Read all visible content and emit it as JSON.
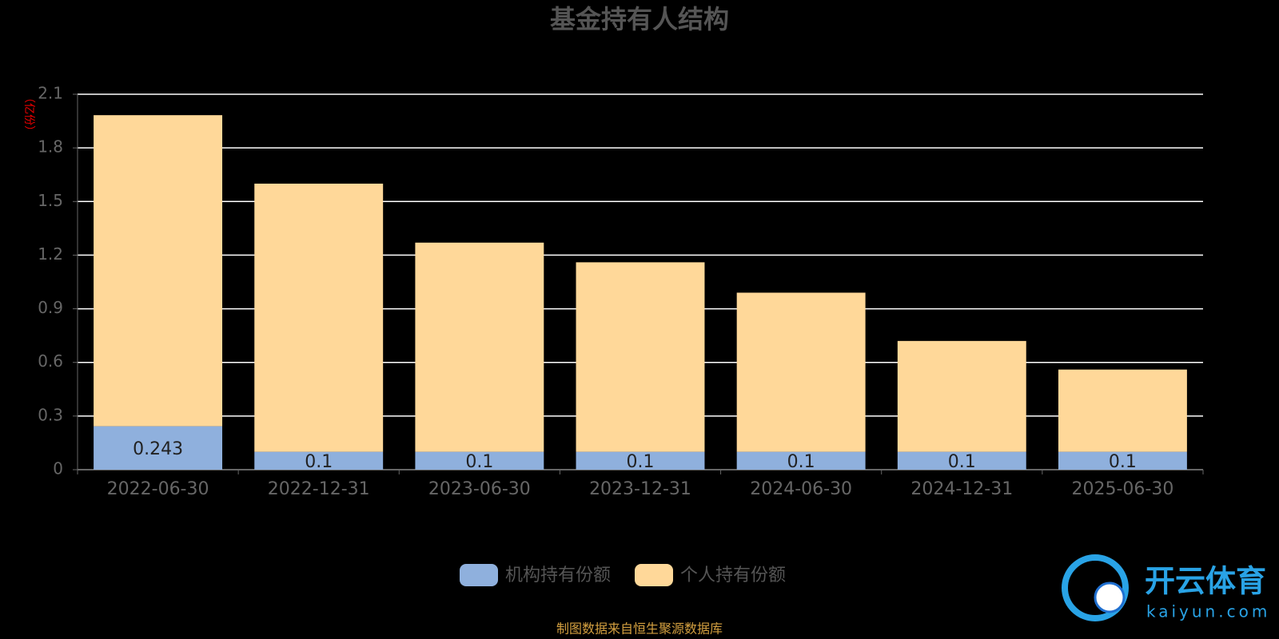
{
  "chart_data": {
    "type": "stacked_bar",
    "title": "基金持有人结构",
    "y_label": "（亿份）",
    "categories": [
      "2022-06-30",
      "2022-12-31",
      "2023-06-30",
      "2023-12-31",
      "2024-06-30",
      "2024-12-31",
      "2025-06-30"
    ],
    "series": [
      {
        "name": "机构持有份额",
        "color": "#8fb0dd",
        "values": [
          0.243,
          0.1,
          0.1,
          0.1,
          0.1,
          0.1,
          0.1
        ],
        "labels": true
      },
      {
        "name": "个人持有份额",
        "color": "#ffd899",
        "values": [
          1.74,
          1.5,
          1.17,
          1.06,
          0.89,
          0.62,
          0.46
        ],
        "labels": false
      }
    ],
    "ylim": [
      0,
      2.1
    ],
    "yticks": [
      0,
      0.3,
      0.6,
      0.9,
      1.2,
      1.5,
      1.8,
      2.1
    ],
    "grid": true,
    "source": "制图数据来自恒生聚源数据库"
  },
  "watermark": {
    "name": "开云体育",
    "url": "kaiyun.com"
  }
}
